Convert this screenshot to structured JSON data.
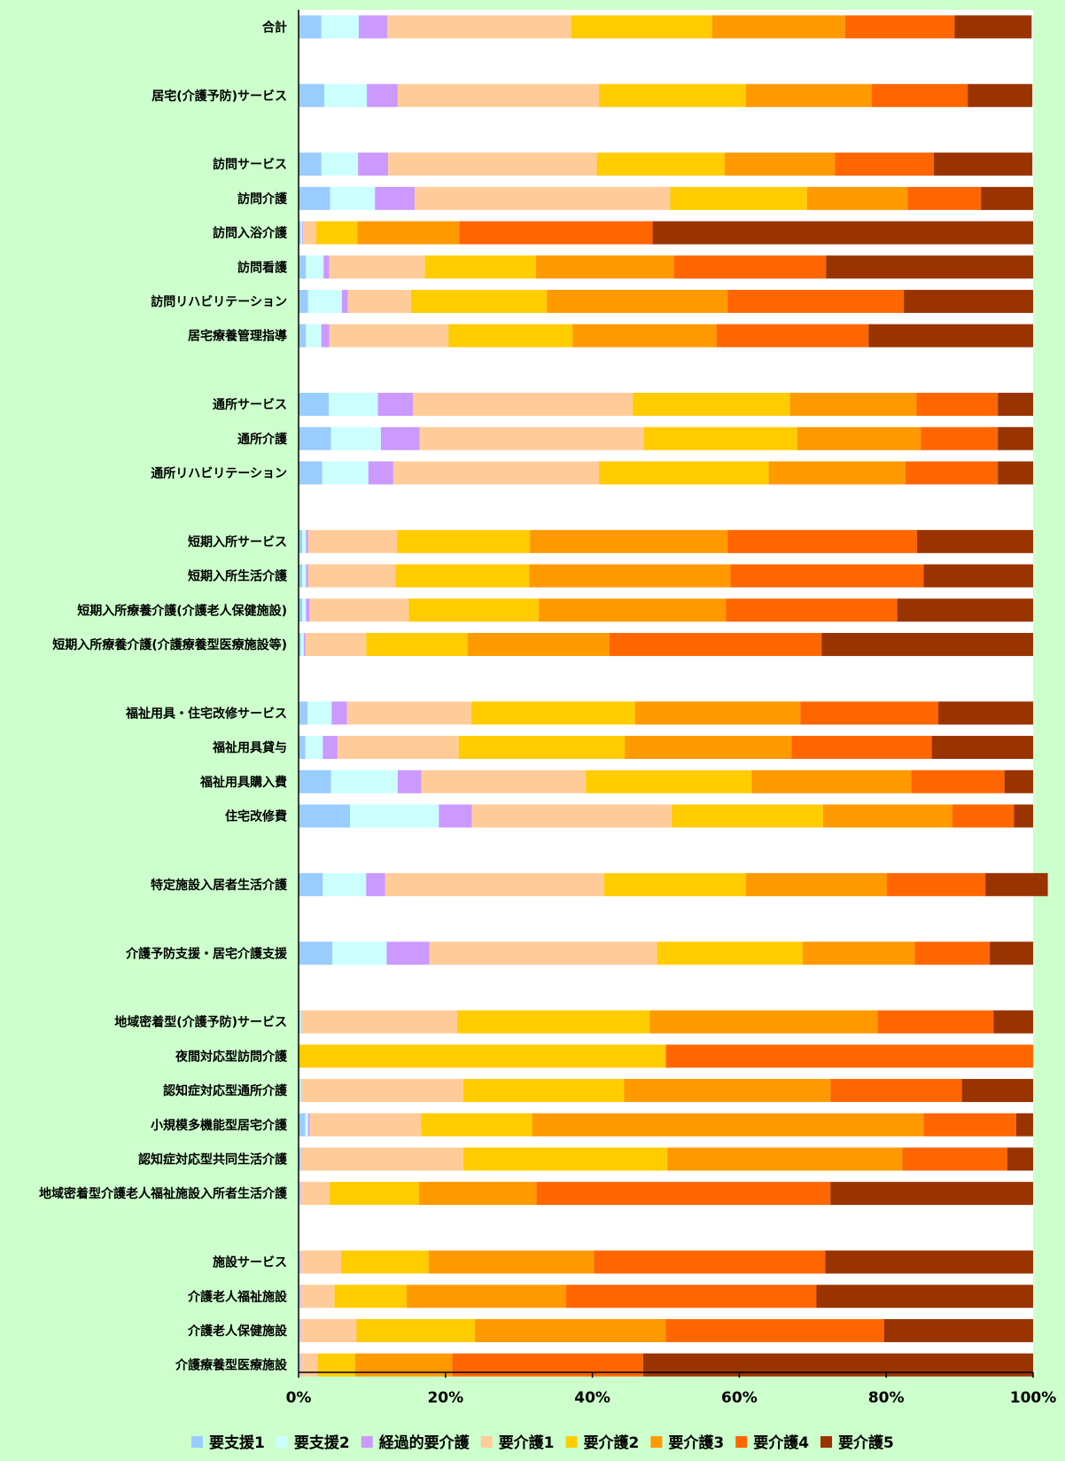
{
  "chart_data": {
    "type": "bar",
    "orientation": "horizontal",
    "stacking": "percent",
    "xlim": [
      0,
      100
    ],
    "x_ticks": [
      "0%",
      "20%",
      "40%",
      "60%",
      "80%",
      "100%"
    ],
    "legend_position": "bottom",
    "grid": false,
    "colors": {
      "plot_background": "#ffffff",
      "page_background": "#ccffcc"
    },
    "series": [
      {
        "name": "要支援1",
        "color": "#99ccff"
      },
      {
        "name": "要支援2",
        "color": "#ccffff"
      },
      {
        "name": "経過的要介護",
        "color": "#cc99ff"
      },
      {
        "name": "要介護1",
        "color": "#ffcc99"
      },
      {
        "name": "要介護2",
        "color": "#ffcc00"
      },
      {
        "name": "要介護3",
        "color": "#ff9900"
      },
      {
        "name": "要介護4",
        "color": "#ff6600"
      },
      {
        "name": "要介護5",
        "color": "#993300"
      }
    ],
    "rows": [
      {
        "label": "合計",
        "values": [
          3.1,
          5.1,
          3.9,
          25.0,
          19.2,
          18.1,
          14.9,
          10.5
        ]
      },
      {
        "label": "",
        "values": null
      },
      {
        "label": "居宅(介護予防)サービス",
        "values": [
          3.5,
          5.8,
          4.2,
          27.4,
          20.0,
          17.1,
          13.1,
          8.8
        ]
      },
      {
        "label": "",
        "values": null
      },
      {
        "label": "訪問サービス",
        "values": [
          3.1,
          5.0,
          4.1,
          28.4,
          17.4,
          15.0,
          13.5,
          13.4
        ]
      },
      {
        "label": "訪問介護",
        "values": [
          4.3,
          6.1,
          5.4,
          34.8,
          18.6,
          13.7,
          10.0,
          7.1
        ]
      },
      {
        "label": "訪問入浴介護",
        "values": [
          0.3,
          0.2,
          0.1,
          1.8,
          5.6,
          13.9,
          26.3,
          51.8
        ]
      },
      {
        "label": "訪問看護",
        "values": [
          1.0,
          2.4,
          0.8,
          13.0,
          15.1,
          18.8,
          20.7,
          28.2
        ]
      },
      {
        "label": "訪問リハビリテーション",
        "values": [
          1.3,
          4.6,
          0.8,
          8.6,
          18.5,
          24.6,
          24.0,
          17.6
        ]
      },
      {
        "label": "居宅療養管理指導",
        "values": [
          1.0,
          2.1,
          1.1,
          16.2,
          16.9,
          19.6,
          20.7,
          22.4
        ]
      },
      {
        "label": "",
        "values": null
      },
      {
        "label": "通所サービス",
        "values": [
          4.1,
          6.7,
          4.8,
          29.9,
          21.4,
          17.2,
          11.1,
          4.8
        ]
      },
      {
        "label": "通所介護",
        "values": [
          4.4,
          6.8,
          5.3,
          30.5,
          20.9,
          16.8,
          10.5,
          4.8
        ]
      },
      {
        "label": "通所リハビリテーション",
        "values": [
          3.2,
          6.3,
          3.4,
          28.0,
          23.1,
          18.6,
          12.6,
          4.8
        ]
      },
      {
        "label": "",
        "values": null
      },
      {
        "label": "短期入所サービス",
        "values": [
          0.5,
          0.5,
          0.3,
          12.1,
          18.1,
          26.9,
          25.8,
          15.8
        ]
      },
      {
        "label": "短期入所生活介護",
        "values": [
          0.5,
          0.5,
          0.3,
          11.9,
          18.2,
          27.4,
          26.3,
          14.9
        ]
      },
      {
        "label": "短期入所療養介護(介護老人保健施設)",
        "values": [
          0.5,
          0.5,
          0.5,
          13.5,
          17.7,
          25.5,
          23.3,
          18.5
        ]
      },
      {
        "label": "短期入所療養介護(介護療養型医療施設等)",
        "values": [
          0.3,
          0.4,
          0.2,
          8.3,
          13.8,
          19.3,
          28.9,
          28.8
        ]
      },
      {
        "label": "",
        "values": null
      },
      {
        "label": "福祉用具・住宅改修サービス",
        "values": [
          1.2,
          3.3,
          2.1,
          16.9,
          22.3,
          22.5,
          18.8,
          12.9
        ]
      },
      {
        "label": "福祉用具貸与",
        "values": [
          0.9,
          2.4,
          2.0,
          16.5,
          22.6,
          22.7,
          19.1,
          13.8
        ]
      },
      {
        "label": "福祉用具購入費",
        "values": [
          4.4,
          9.1,
          3.2,
          22.4,
          22.6,
          21.7,
          12.7,
          3.9
        ]
      },
      {
        "label": "住宅改修費",
        "values": [
          7.0,
          12.1,
          4.5,
          27.2,
          20.6,
          17.6,
          8.4,
          2.6
        ]
      },
      {
        "label": "",
        "values": null
      },
      {
        "label": "特定施設入居者生活介護",
        "values": [
          3.3,
          5.9,
          2.6,
          29.8,
          19.3,
          19.2,
          13.4,
          8.5
        ]
      },
      {
        "label": "",
        "values": null
      },
      {
        "label": "介護予防支援・居宅介護支援",
        "values": [
          4.6,
          7.4,
          5.8,
          31.0,
          19.8,
          15.3,
          10.2,
          5.9
        ]
      },
      {
        "label": "",
        "values": null
      },
      {
        "label": "地域密着型(介護予防)サービス",
        "values": [
          0.2,
          0.2,
          0.1,
          21.1,
          26.2,
          31.0,
          15.8,
          5.4
        ]
      },
      {
        "label": "夜間対応型訪問介護",
        "values": [
          0.0,
          0.0,
          0.0,
          0.0,
          50.0,
          0.0,
          50.0,
          0.0
        ]
      },
      {
        "label": "認知症対応型通所介護",
        "values": [
          0.2,
          0.2,
          0.1,
          21.9,
          21.9,
          28.1,
          17.9,
          9.7
        ]
      },
      {
        "label": "小規模多機能型居宅介護",
        "values": [
          0.9,
          0.4,
          0.2,
          15.2,
          15.1,
          53.3,
          12.6,
          2.3
        ]
      },
      {
        "label": "認知症対応型共同生活介護",
        "values": [
          0.2,
          0.1,
          0.1,
          22.0,
          27.8,
          32.0,
          14.3,
          3.5
        ]
      },
      {
        "label": "地域密着型介護老人福祉施設入所者生活介護",
        "values": [
          0.1,
          0.1,
          0.1,
          3.9,
          12.2,
          16.0,
          40.0,
          27.6
        ]
      },
      {
        "label": "",
        "values": null
      },
      {
        "label": "施設サービス",
        "values": [
          0.1,
          0.1,
          0.1,
          5.5,
          11.9,
          22.5,
          31.5,
          28.3
        ]
      },
      {
        "label": "介護老人福祉施設",
        "values": [
          0.1,
          0.1,
          0.1,
          4.6,
          9.8,
          21.7,
          34.1,
          29.5
        ]
      },
      {
        "label": "介護老人保健施設",
        "values": [
          0.1,
          0.1,
          0.1,
          7.6,
          16.1,
          26.0,
          29.7,
          20.3
        ]
      },
      {
        "label": "介護療養型医療施設",
        "values": [
          0.1,
          0.1,
          0.1,
          2.3,
          5.1,
          13.2,
          26.0,
          53.1
        ]
      }
    ]
  }
}
